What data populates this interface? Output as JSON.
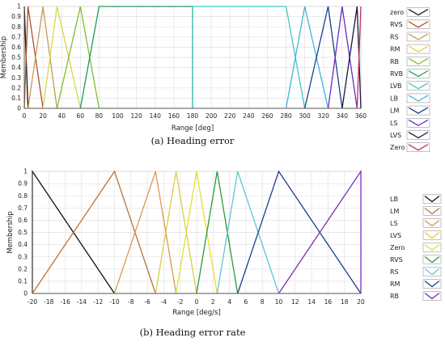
{
  "chart_data": [
    {
      "type": "line",
      "xlabel": "Range [deg]",
      "ylabel": "Membership",
      "caption": "(a) Heading error",
      "xlim": [
        0,
        360
      ],
      "ylim": [
        0,
        1
      ],
      "xticks": [
        0,
        20,
        40,
        60,
        80,
        100,
        120,
        140,
        160,
        180,
        200,
        220,
        240,
        260,
        280,
        300,
        320,
        340,
        360
      ],
      "yticks": [
        0,
        0.1,
        0.2,
        0.3,
        0.4,
        0.5,
        0.6,
        0.7,
        0.8,
        0.9,
        1
      ],
      "ytick_labels": [
        "0",
        "0.1",
        "0.2",
        "0.3",
        "0.4",
        "0.5",
        "0.6",
        "0.7",
        "0.8",
        "0.9",
        "1"
      ],
      "grid": true,
      "legend_position": "right",
      "series": [
        {
          "name": "zero",
          "color": "#111111",
          "x": [
            0,
            0,
            4
          ],
          "y": [
            1,
            1,
            0
          ]
        },
        {
          "name": "RVS",
          "color": "#b0502a",
          "x": [
            0,
            4,
            20
          ],
          "y": [
            0,
            1,
            0
          ]
        },
        {
          "name": "RS",
          "color": "#c89a52",
          "x": [
            4,
            20,
            35
          ],
          "y": [
            0,
            1,
            0
          ]
        },
        {
          "name": "RM",
          "color": "#d8d845",
          "x": [
            20,
            35,
            60
          ],
          "y": [
            0,
            1,
            0
          ]
        },
        {
          "name": "RB",
          "color": "#7fbf2c",
          "x": [
            35,
            60,
            80
          ],
          "y": [
            0,
            1,
            0
          ]
        },
        {
          "name": "RVB",
          "color": "#1e9a5a",
          "x": [
            60,
            80,
            180,
            180
          ],
          "y": [
            0,
            1,
            1,
            0
          ]
        },
        {
          "name": "LVB",
          "color": "#40c8bc",
          "x": [
            180,
            180,
            280,
            300
          ],
          "y": [
            0,
            1,
            1,
            0
          ]
        },
        {
          "name": "LB",
          "color": "#3fb6d8",
          "x": [
            280,
            300,
            325
          ],
          "y": [
            0,
            1,
            0
          ]
        },
        {
          "name": "LM",
          "color": "#1b3f8c",
          "x": [
            300,
            325,
            340
          ],
          "y": [
            0,
            1,
            0
          ]
        },
        {
          "name": "LS",
          "color": "#6a2bc0",
          "x": [
            325,
            340,
            356
          ],
          "y": [
            0,
            1,
            0
          ]
        },
        {
          "name": "LVS",
          "color": "#1a1440",
          "x": [
            340,
            356,
            360
          ],
          "y": [
            0,
            1,
            0
          ]
        },
        {
          "name": "Zero",
          "color": "#c0306a",
          "x": [
            356,
            360,
            360
          ],
          "y": [
            0,
            1,
            1
          ]
        }
      ]
    },
    {
      "type": "line",
      "xlabel": "Range [deg/s]",
      "ylabel": "Membership",
      "caption": "(b) Heading error rate",
      "xlim": [
        -20,
        20
      ],
      "ylim": [
        0,
        1
      ],
      "xticks": [
        -20,
        -18,
        -16,
        -14,
        -12,
        -10,
        -8,
        -6,
        -4,
        -2,
        0,
        2,
        4,
        6,
        8,
        10,
        12,
        14,
        16,
        18,
        20
      ],
      "yticks": [
        0,
        0.1,
        0.2,
        0.3,
        0.4,
        0.5,
        0.6,
        0.7,
        0.8,
        0.9,
        1
      ],
      "ytick_labels": [
        "0",
        "0.1",
        "0.2",
        "0.3",
        "0.4",
        "0.5",
        "0.6",
        "0.7",
        "0.8",
        "0.9",
        "1"
      ],
      "grid": true,
      "legend_position": "right",
      "series": [
        {
          "name": "LB",
          "color": "#111111",
          "x": [
            -20,
            -20,
            -10
          ],
          "y": [
            0,
            1,
            0
          ]
        },
        {
          "name": "LM",
          "color": "#b8743a",
          "x": [
            -20,
            -10,
            -5
          ],
          "y": [
            0,
            1,
            0
          ]
        },
        {
          "name": "LS",
          "color": "#d89a52",
          "x": [
            -10,
            -5,
            -2.5
          ],
          "y": [
            0,
            1,
            0
          ]
        },
        {
          "name": "LVS",
          "color": "#d8d040",
          "x": [
            -5,
            -2.5,
            0
          ],
          "y": [
            0,
            1,
            0
          ]
        },
        {
          "name": "Zero",
          "color": "#e4e030",
          "x": [
            -2.5,
            0,
            2.5
          ],
          "y": [
            0,
            1,
            0
          ]
        },
        {
          "name": "RVS",
          "color": "#2a9a3a",
          "x": [
            0,
            2.5,
            5
          ],
          "y": [
            0,
            1,
            0
          ]
        },
        {
          "name": "RS",
          "color": "#5ec8d0",
          "x": [
            2.5,
            5,
            10
          ],
          "y": [
            0,
            1,
            0
          ]
        },
        {
          "name": "RM",
          "color": "#1e3f8c",
          "x": [
            5,
            10,
            20
          ],
          "y": [
            0,
            1,
            0
          ]
        },
        {
          "name": "RB",
          "color": "#7a2fb8",
          "x": [
            10,
            20,
            20
          ],
          "y": [
            0,
            1,
            0
          ]
        }
      ]
    }
  ]
}
